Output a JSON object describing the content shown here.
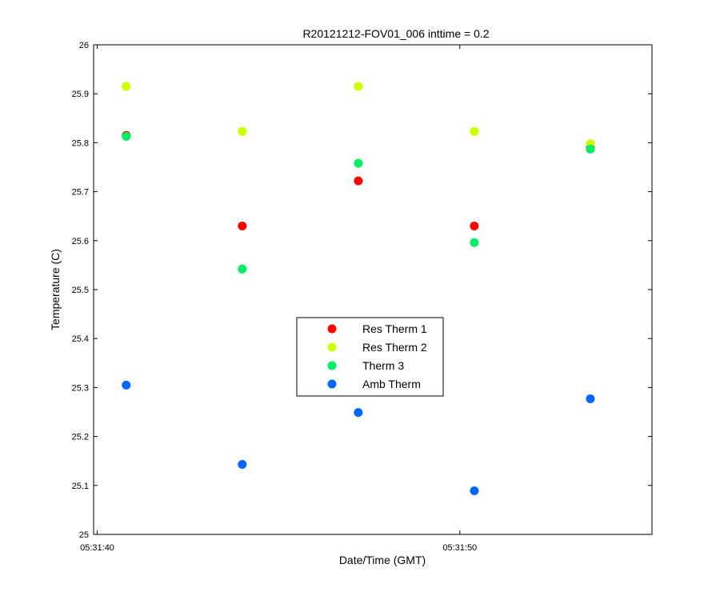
{
  "chart_data": {
    "type": "scatter",
    "title": "R20121212-FOV01_006 inttime = 0.2",
    "xlabel": "Date/Time (GMT)",
    "ylabel": "Temperature (C)",
    "xlim": [
      "05:31:39.9",
      "05:31:55.3"
    ],
    "ylim": [
      25,
      26
    ],
    "xticks": [
      "05:31:40",
      "05:31:50"
    ],
    "yticks": [
      "25",
      "25.1",
      "25.2",
      "25.3",
      "25.4",
      "25.5",
      "25.6",
      "25.7",
      "25.8",
      "25.9",
      "26"
    ],
    "grid": false,
    "legend_position": "center",
    "x": [
      "05:31:40.8",
      "05:31:44.0",
      "05:31:47.2",
      "05:31:50.4",
      "05:31:53.6"
    ],
    "series": [
      {
        "name": "Res Therm 1",
        "color": "#ff0000",
        "values": [
          25.815,
          25.63,
          25.722,
          25.63,
          25.79
        ]
      },
      {
        "name": "Res Therm 2",
        "color": "#ccff00",
        "values": [
          25.915,
          25.823,
          25.915,
          25.823,
          25.798
        ]
      },
      {
        "name": "Therm 3",
        "color": "#00ee66",
        "values": [
          25.813,
          25.542,
          25.758,
          25.596,
          25.787
        ]
      },
      {
        "name": "Amb Therm",
        "color": "#0066ff",
        "values": [
          25.305,
          25.143,
          25.249,
          25.089,
          25.277
        ]
      }
    ]
  }
}
